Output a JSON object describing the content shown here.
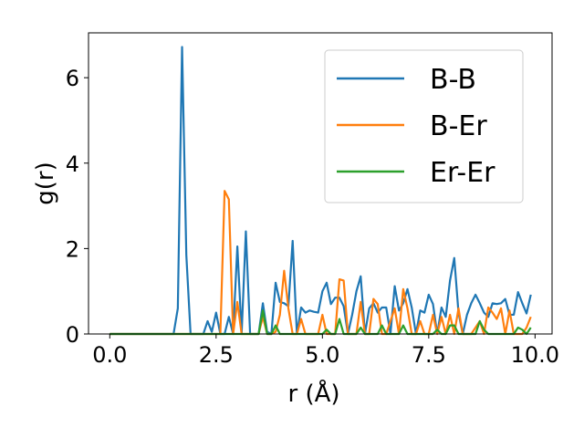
{
  "chart_data": {
    "type": "line",
    "title": "",
    "xlabel": "r (Å)",
    "ylabel": "g(r)",
    "xlim": [
      -0.5,
      10.4
    ],
    "ylim": [
      0,
      7.05
    ],
    "xticks": [
      0.0,
      2.5,
      5.0,
      7.5,
      10.0
    ],
    "xtick_labels": [
      "0.0",
      "2.5",
      "5.0",
      "7.5",
      "10.0"
    ],
    "yticks": [
      0,
      2,
      4,
      6
    ],
    "ytick_labels": [
      "0",
      "2",
      "4",
      "6"
    ],
    "grid": false,
    "legend_position": "top-right",
    "series": [
      {
        "name": "B-B",
        "color": "#1f77b4",
        "x": [
          0.0,
          1.5,
          1.6,
          1.7,
          1.8,
          1.9,
          2.0,
          2.1,
          2.2,
          2.3,
          2.4,
          2.5,
          2.6,
          2.7,
          2.8,
          2.9,
          3.0,
          3.1,
          3.2,
          3.3,
          3.4,
          3.5,
          3.6,
          3.7,
          3.8,
          3.9,
          4.0,
          4.1,
          4.2,
          4.3,
          4.4,
          4.5,
          4.6,
          4.7,
          4.8,
          4.9,
          5.0,
          5.1,
          5.2,
          5.3,
          5.4,
          5.5,
          5.6,
          5.7,
          5.8,
          5.9,
          6.0,
          6.1,
          6.2,
          6.3,
          6.4,
          6.5,
          6.6,
          6.7,
          6.8,
          6.9,
          7.0,
          7.1,
          7.2,
          7.3,
          7.4,
          7.5,
          7.6,
          7.7,
          7.8,
          7.9,
          8.0,
          8.1,
          8.2,
          8.3,
          8.4,
          8.5,
          8.6,
          8.7,
          8.8,
          8.9,
          9.0,
          9.1,
          9.2,
          9.3,
          9.4,
          9.5,
          9.6,
          9.7,
          9.8,
          9.9
        ],
        "y": [
          0.0,
          0.0,
          0.6,
          6.72,
          1.85,
          0.0,
          0.0,
          0.0,
          0.0,
          0.3,
          0.05,
          0.5,
          0.0,
          0.0,
          0.4,
          0.0,
          2.05,
          0.0,
          2.4,
          0.0,
          0.0,
          0.0,
          0.72,
          0.05,
          0.0,
          1.2,
          0.75,
          0.72,
          0.65,
          2.18,
          0.0,
          0.62,
          0.5,
          0.55,
          0.52,
          0.5,
          1.0,
          1.2,
          0.7,
          0.85,
          0.85,
          0.65,
          0.0,
          0.45,
          1.0,
          1.35,
          0.0,
          0.6,
          0.72,
          0.5,
          0.62,
          0.62,
          0.0,
          1.12,
          0.55,
          0.72,
          1.05,
          0.62,
          0.0,
          0.55,
          0.5,
          0.92,
          0.7,
          0.0,
          0.62,
          0.4,
          1.25,
          1.78,
          0.5,
          0.0,
          0.45,
          0.72,
          0.92,
          0.72,
          0.5,
          0.4,
          0.72,
          0.7,
          0.72,
          0.82,
          0.45,
          0.45,
          0.98,
          0.72,
          0.48,
          0.92
        ]
      },
      {
        "name": "B-Er",
        "color": "#ff7f0e",
        "x": [
          0.0,
          2.5,
          2.6,
          2.7,
          2.8,
          2.9,
          3.0,
          3.1,
          3.2,
          3.3,
          3.4,
          3.5,
          3.6,
          3.7,
          3.8,
          3.9,
          4.0,
          4.1,
          4.2,
          4.3,
          4.4,
          4.5,
          4.6,
          4.7,
          4.8,
          4.9,
          5.0,
          5.1,
          5.2,
          5.3,
          5.4,
          5.5,
          5.6,
          5.7,
          5.8,
          5.9,
          6.0,
          6.1,
          6.2,
          6.3,
          6.4,
          6.5,
          6.6,
          6.7,
          6.8,
          6.9,
          7.0,
          7.1,
          7.2,
          7.3,
          7.4,
          7.5,
          7.6,
          7.7,
          7.8,
          7.9,
          8.0,
          8.1,
          8.2,
          8.3,
          8.4,
          8.5,
          8.6,
          8.7,
          8.8,
          8.9,
          9.0,
          9.1,
          9.2,
          9.3,
          9.4,
          9.5,
          9.6,
          9.7,
          9.8,
          9.9
        ],
        "y": [
          0.0,
          0.0,
          0.0,
          3.35,
          3.15,
          0.0,
          0.75,
          0.0,
          0.0,
          0.0,
          0.0,
          0.0,
          0.4,
          0.0,
          0.0,
          0.05,
          0.45,
          1.48,
          0.6,
          0.0,
          0.0,
          0.35,
          0.0,
          0.0,
          0.0,
          0.0,
          0.45,
          0.0,
          0.0,
          0.0,
          1.28,
          1.25,
          0.0,
          0.0,
          0.0,
          0.75,
          0.0,
          0.0,
          0.82,
          0.7,
          0.0,
          0.0,
          0.3,
          0.6,
          0.0,
          1.05,
          0.6,
          0.0,
          0.0,
          0.3,
          0.0,
          0.0,
          0.45,
          0.0,
          0.4,
          0.0,
          0.45,
          0.0,
          0.6,
          0.0,
          0.0,
          0.0,
          0.15,
          0.3,
          0.0,
          0.62,
          0.5,
          0.35,
          0.6,
          0.0,
          0.55,
          0.0,
          0.0,
          0.0,
          0.15,
          0.4
        ]
      },
      {
        "name": "Er-Er",
        "color": "#2ca02c",
        "x": [
          0.0,
          3.5,
          3.6,
          3.7,
          3.8,
          3.9,
          4.0,
          4.1,
          5.0,
          5.1,
          5.2,
          5.3,
          5.4,
          5.5,
          5.6,
          5.7,
          5.8,
          5.9,
          6.0,
          6.1,
          6.2,
          6.3,
          6.4,
          6.5,
          6.6,
          6.7,
          6.8,
          6.9,
          7.0,
          7.1,
          7.2,
          7.3,
          7.4,
          7.5,
          7.6,
          7.7,
          7.8,
          7.9,
          8.0,
          8.1,
          8.2,
          8.3,
          8.4,
          8.5,
          8.6,
          8.7,
          8.8,
          8.9,
          9.0,
          9.1,
          9.2,
          9.3,
          9.4,
          9.5,
          9.6,
          9.7,
          9.8,
          9.9
        ],
        "y": [
          0.0,
          0.0,
          0.55,
          0.0,
          0.0,
          0.2,
          0.0,
          0.0,
          0.0,
          0.1,
          0.0,
          0.0,
          0.35,
          0.0,
          0.0,
          0.0,
          0.0,
          0.15,
          0.0,
          0.0,
          0.0,
          0.0,
          0.2,
          0.0,
          0.0,
          0.0,
          0.0,
          0.2,
          0.0,
          0.0,
          0.0,
          0.0,
          0.0,
          0.0,
          0.0,
          0.1,
          0.0,
          0.0,
          0.2,
          0.2,
          0.0,
          0.0,
          0.0,
          0.0,
          0.0,
          0.3,
          0.1,
          0.0,
          0.0,
          0.0,
          0.0,
          0.0,
          0.0,
          0.0,
          0.15,
          0.1,
          0.0,
          0.15
        ]
      }
    ]
  }
}
